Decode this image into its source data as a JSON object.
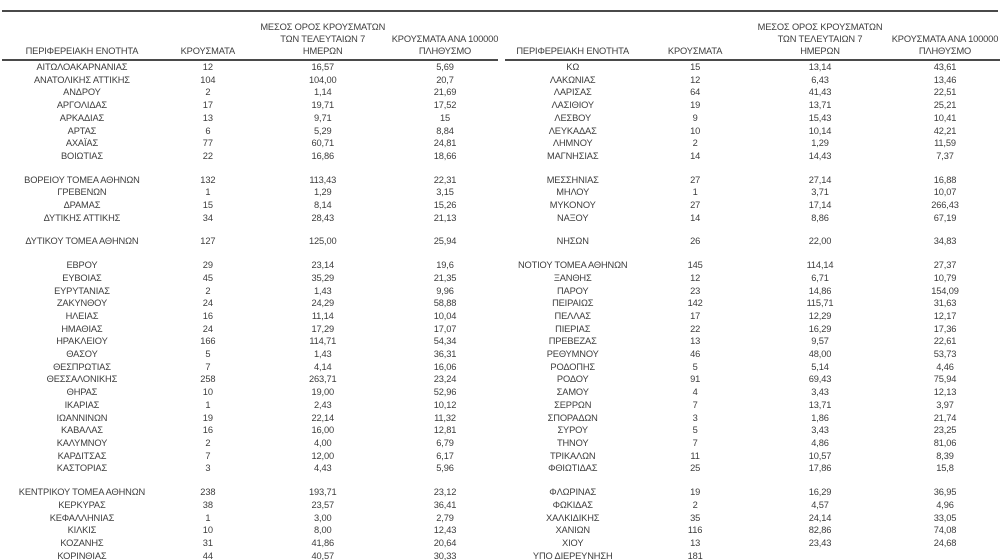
{
  "page": {
    "background": "#ffffff",
    "text_color": "#3d3d3d",
    "rule_color": "#4a4a4a"
  },
  "tables": [
    {
      "name": "left-table",
      "columns": {
        "region_lines": [
          "ΠΕΡΙΦΕΡΕΙΑΚΗ ΕΝΟΤΗΤΑ"
        ],
        "cases_lines": [
          "ΚΡΟΥΣΜΑΤΑ"
        ],
        "avg7_lines": [
          "ΜΕΣΟΣ ΟΡΟΣ ΚΡΟΥΣΜΑΤΩΝ",
          "ΤΩΝ ΤΕΛΕΥΤΑΙΩΝ 7",
          "ΗΜΕΡΩΝ"
        ],
        "per100k_lines": [
          "ΚΡΟΥΣΜΑΤΑ ΑΝΑ 100000",
          "ΠΛΗΘΥΣΜΟ"
        ]
      },
      "sections": [
        [
          [
            "ΑΙΤΩΛΟΑΚΑΡΝΑΝΙΑΣ",
            "12",
            "16,57",
            "5,69"
          ],
          [
            "ΑΝΑΤΟΛΙΚΗΣ ΑΤΤΙΚΗΣ",
            "104",
            "104,00",
            "20,7"
          ],
          [
            "ΑΝΔΡΟΥ",
            "2",
            "1,14",
            "21,69"
          ],
          [
            "ΑΡΓΟΛΙΔΑΣ",
            "17",
            "19,71",
            "17,52"
          ],
          [
            "ΑΡΚΑΔΙΑΣ",
            "13",
            "9,71",
            "15"
          ],
          [
            "ΑΡΤΑΣ",
            "6",
            "5,29",
            "8,84"
          ],
          [
            "ΑΧΑΪΑΣ",
            "77",
            "60,71",
            "24,81"
          ],
          [
            "ΒΟΙΩΤΙΑΣ",
            "22",
            "16,86",
            "18,66"
          ]
        ],
        [
          [
            "ΒΟΡΕΙΟΥ ΤΟΜΕΑ ΑΘΗΝΩΝ",
            "132",
            "113,43",
            "22,31"
          ],
          [
            "ΓΡΕΒΕΝΩΝ",
            "1",
            "1,29",
            "3,15"
          ],
          [
            "ΔΡΑΜΑΣ",
            "15",
            "8,14",
            "15,26"
          ],
          [
            "ΔΥΤΙΚΗΣ ΑΤΤΙΚΗΣ",
            "34",
            "28,43",
            "21,13"
          ]
        ],
        [
          [
            "ΔΥΤΙΚΟΥ ΤΟΜΕΑ ΑΘΗΝΩΝ",
            "127",
            "125,00",
            "25,94"
          ]
        ],
        [
          [
            "ΕΒΡΟΥ",
            "29",
            "23,14",
            "19,6"
          ],
          [
            "ΕΥΒΟΙΑΣ",
            "45",
            "35,29",
            "21,35"
          ],
          [
            "ΕΥΡΥΤΑΝΙΑΣ",
            "2",
            "1,43",
            "9,96"
          ],
          [
            "ΖΑΚΥΝΘΟΥ",
            "24",
            "24,29",
            "58,88"
          ],
          [
            "ΗΛΕΙΑΣ",
            "16",
            "11,14",
            "10,04"
          ],
          [
            "ΗΜΑΘΙΑΣ",
            "24",
            "17,29",
            "17,07"
          ],
          [
            "ΗΡΑΚΛΕΙΟΥ",
            "166",
            "114,71",
            "54,34"
          ],
          [
            "ΘΑΣΟΥ",
            "5",
            "1,43",
            "36,31"
          ],
          [
            "ΘΕΣΠΡΩΤΙΑΣ",
            "7",
            "4,14",
            "16,06"
          ],
          [
            "ΘΕΣΣΑΛΟΝΙΚΗΣ",
            "258",
            "263,71",
            "23,24"
          ],
          [
            "ΘΗΡΑΣ",
            "10",
            "19,00",
            "52,96"
          ],
          [
            "ΙΚΑΡΙΑΣ",
            "1",
            "2,43",
            "10,12"
          ],
          [
            "ΙΩΑΝΝΙΝΩΝ",
            "19",
            "22,14",
            "11,32"
          ],
          [
            "ΚΑΒΑΛΑΣ",
            "16",
            "16,00",
            "12,81"
          ],
          [
            "ΚΑΛΥΜΝΟΥ",
            "2",
            "4,00",
            "6,79"
          ],
          [
            "ΚΑΡΔΙΤΣΑΣ",
            "7",
            "12,00",
            "6,17"
          ],
          [
            "ΚΑΣΤΟΡΙΑΣ",
            "3",
            "4,43",
            "5,96"
          ]
        ],
        [
          [
            "ΚΕΝΤΡΙΚΟΥ ΤΟΜΕΑ ΑΘΗΝΩΝ",
            "238",
            "193,71",
            "23,12"
          ],
          [
            "ΚΕΡΚΥΡΑΣ",
            "38",
            "23,57",
            "36,41"
          ],
          [
            "ΚΕΦΑΛΛΗΝΙΑΣ",
            "1",
            "3,00",
            "2,79"
          ],
          [
            "ΚΙΛΚΙΣ",
            "10",
            "8,00",
            "12,43"
          ],
          [
            "ΚΟΖΑΝΗΣ",
            "31",
            "41,86",
            "20,64"
          ],
          [
            "ΚΟΡΙΝΘΙΑΣ",
            "44",
            "40,57",
            "30,33"
          ]
        ]
      ]
    },
    {
      "name": "right-table",
      "columns": {
        "region_lines": [
          "ΠΕΡΙΦΕΡΕΙΑΚΗ ΕΝΟΤΗΤΑ"
        ],
        "cases_lines": [
          "ΚΡΟΥΣΜΑΤΑ"
        ],
        "avg7_lines": [
          "ΜΕΣΟΣ ΟΡΟΣ ΚΡΟΥΣΜΑΤΩΝ",
          "ΤΩΝ ΤΕΛΕΥΤΑΙΩΝ 7",
          "ΗΜΕΡΩΝ"
        ],
        "per100k_lines": [
          "ΚΡΟΥΣΜΑΤΑ ΑΝΑ 100000",
          "ΠΛΗΘΥΣΜΟ"
        ]
      },
      "sections": [
        [
          [
            "ΚΩ",
            "15",
            "13,14",
            "43,61"
          ],
          [
            "ΛΑΚΩΝΙΑΣ",
            "12",
            "6,43",
            "13,46"
          ],
          [
            "ΛΑΡΙΣΑΣ",
            "64",
            "41,43",
            "22,51"
          ],
          [
            "ΛΑΣΙΘΙΟΥ",
            "19",
            "13,71",
            "25,21"
          ],
          [
            "ΛΕΣΒΟΥ",
            "9",
            "15,43",
            "10,41"
          ],
          [
            "ΛΕΥΚΑΔΑΣ",
            "10",
            "10,14",
            "42,21"
          ],
          [
            "ΛΗΜΝΟΥ",
            "2",
            "1,29",
            "11,59"
          ],
          [
            "ΜΑΓΝΗΣΙΑΣ",
            "14",
            "14,43",
            "7,37"
          ]
        ],
        [
          [
            "ΜΕΣΣΗΝΙΑΣ",
            "27",
            "27,14",
            "16,88"
          ],
          [
            "ΜΗΛΟΥ",
            "1",
            "3,71",
            "10,07"
          ],
          [
            "ΜΥΚΟΝΟΥ",
            "27",
            "17,14",
            "266,43"
          ],
          [
            "ΝΑΞΟΥ",
            "14",
            "8,86",
            "67,19"
          ]
        ],
        [
          [
            "ΝΗΣΩΝ",
            "26",
            "22,00",
            "34,83"
          ]
        ],
        [
          [
            "ΝΟΤΙΟΥ ΤΟΜΕΑ ΑΘΗΝΩΝ",
            "145",
            "114,14",
            "27,37"
          ],
          [
            "ΞΑΝΘΗΣ",
            "12",
            "6,71",
            "10,79"
          ],
          [
            "ΠΑΡΟΥ",
            "23",
            "14,86",
            "154,09"
          ],
          [
            "ΠΕΙΡΑΙΩΣ",
            "142",
            "115,71",
            "31,63"
          ],
          [
            "ΠΕΛΛΑΣ",
            "17",
            "12,29",
            "12,17"
          ],
          [
            "ΠΙΕΡΙΑΣ",
            "22",
            "16,29",
            "17,36"
          ],
          [
            "ΠΡΕΒΕΖΑΣ",
            "13",
            "9,57",
            "22,61"
          ],
          [
            "ΡΕΘΥΜΝΟΥ",
            "46",
            "48,00",
            "53,73"
          ],
          [
            "ΡΟΔΟΠΗΣ",
            "5",
            "5,14",
            "4,46"
          ],
          [
            "ΡΟΔΟΥ",
            "91",
            "69,43",
            "75,94"
          ],
          [
            "ΣΑΜΟΥ",
            "4",
            "3,43",
            "12,13"
          ],
          [
            "ΣΕΡΡΩΝ",
            "7",
            "13,71",
            "3,97"
          ],
          [
            "ΣΠΟΡΑΔΩΝ",
            "3",
            "1,86",
            "21,74"
          ],
          [
            "ΣΥΡΟΥ",
            "5",
            "3,43",
            "23,25"
          ],
          [
            "ΤΗΝΟΥ",
            "7",
            "4,86",
            "81,06"
          ],
          [
            "ΤΡΙΚΑΛΩΝ",
            "11",
            "10,57",
            "8,39"
          ],
          [
            "ΦΘΙΩΤΙΔΑΣ",
            "25",
            "17,86",
            "15,8"
          ]
        ],
        [
          [
            "ΦΛΩΡΙΝΑΣ",
            "19",
            "16,29",
            "36,95"
          ],
          [
            "ΦΩΚΙΔΑΣ",
            "2",
            "4,57",
            "4,96"
          ],
          [
            "ΧΑΛΚΙΔΙΚΗΣ",
            "35",
            "24,14",
            "33,05"
          ],
          [
            "ΧΑΝΙΩΝ",
            "116",
            "82,86",
            "74,08"
          ],
          [
            "ΧΙΟΥ",
            "13",
            "23,43",
            "24,68"
          ],
          [
            "ΥΠΟ ΔΙΕΡΕΥΝΗΣΗ",
            "181",
            "",
            ""
          ]
        ]
      ]
    }
  ]
}
